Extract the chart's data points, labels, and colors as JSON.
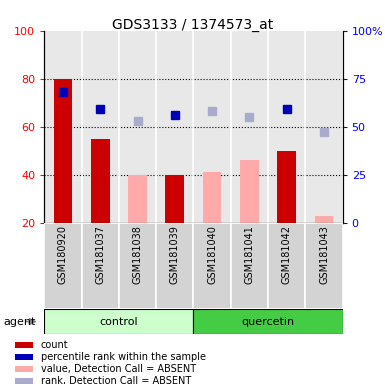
{
  "title": "GDS3133 / 1374573_at",
  "samples": [
    "GSM180920",
    "GSM181037",
    "GSM181038",
    "GSM181039",
    "GSM181040",
    "GSM181041",
    "GSM181042",
    "GSM181043"
  ],
  "count_values": [
    80,
    55,
    null,
    40,
    null,
    null,
    50,
    null
  ],
  "count_absent_values": [
    null,
    null,
    40,
    null,
    41,
    46,
    null,
    23
  ],
  "rank_present": [
    68,
    59,
    null,
    56,
    null,
    null,
    59,
    null
  ],
  "rank_absent": [
    null,
    null,
    53,
    null,
    58,
    55,
    null,
    47
  ],
  "ylim_left": [
    20,
    100
  ],
  "ylim_right": [
    0,
    100
  ],
  "yticks_left": [
    20,
    40,
    60,
    80,
    100
  ],
  "yticks_right": [
    0,
    25,
    50,
    75,
    100
  ],
  "ytick_labels_right": [
    "0",
    "25",
    "50",
    "75",
    "100%"
  ],
  "color_count": "#cc0000",
  "color_count_absent": "#ffaaaa",
  "color_rank_present": "#0000bb",
  "color_rank_absent": "#aaaacc",
  "bar_width": 0.5,
  "marker_size": 6,
  "grid_lines": [
    40,
    60,
    80
  ],
  "legend_items": [
    {
      "label": "count",
      "color": "#cc0000"
    },
    {
      "label": "percentile rank within the sample",
      "color": "#0000bb"
    },
    {
      "label": "value, Detection Call = ABSENT",
      "color": "#ffaaaa"
    },
    {
      "label": "rank, Detection Call = ABSENT",
      "color": "#aaaacc"
    }
  ],
  "control_color_light": "#ccffcc",
  "control_color": "#ccffcc",
  "quercetin_color": "#44cc44",
  "sample_bg_color": "#d3d3d3",
  "plot_bg_color": "#e8e8e8"
}
